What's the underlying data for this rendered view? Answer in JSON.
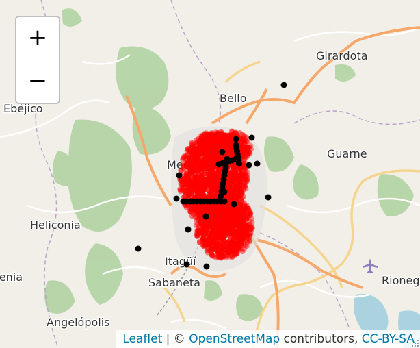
{
  "map": {
    "places": [
      {
        "name": "Girardota"
      },
      {
        "name": "Bello"
      },
      {
        "name": "Ebéjico"
      },
      {
        "name": "Guarne"
      },
      {
        "name": "Heliconia"
      },
      {
        "name": "Itagüí"
      },
      {
        "name": "Sabaneta"
      },
      {
        "name": "Angelópolis"
      },
      {
        "name": "Rionegro"
      },
      {
        "name": "Armenia"
      },
      {
        "name": "Medellín"
      }
    ],
    "colors": {
      "land": "#f2efe9",
      "forest": "#add19e",
      "primary_road": "#f6a86b",
      "secondary_road": "#f5d58e",
      "water": "#aad3df",
      "density_points": "#ff0000",
      "marker_points": "#000000"
    }
  },
  "controls": {
    "zoom_in_label": "+",
    "zoom_out_label": "−"
  },
  "attribution": {
    "leaflet": "Leaflet",
    "separator": " | © ",
    "osm": "OpenStreetMap",
    "contributors": " contributors, ",
    "license": "CC-BY-SA"
  },
  "icons": {
    "airport": "airplane-icon"
  }
}
